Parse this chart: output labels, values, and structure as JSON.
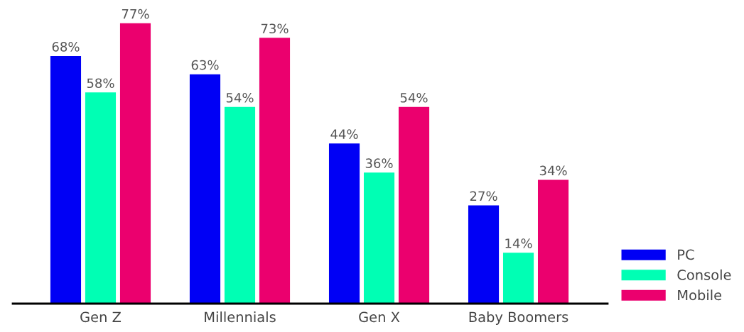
{
  "chart_data": {
    "type": "bar",
    "categories": [
      "Gen Z",
      "Millennials",
      "Gen X",
      "Baby Boomers"
    ],
    "series": [
      {
        "name": "PC",
        "color": "#0000f5",
        "values": [
          68,
          63,
          44,
          27
        ],
        "value_labels": [
          "68%",
          "63%",
          "44%",
          "27%"
        ]
      },
      {
        "name": "Console",
        "color": "#00ffb4",
        "values": [
          58,
          54,
          36,
          14
        ],
        "value_labels": [
          "58%",
          "54%",
          "36%",
          "14%"
        ]
      },
      {
        "name": "Mobile",
        "color": "#eb006e",
        "values": [
          77,
          73,
          54,
          34
        ],
        "value_labels": [
          "77%",
          "73%",
          "54%",
          "34%"
        ]
      }
    ],
    "legend": "bottom right",
    "grid": false
  }
}
